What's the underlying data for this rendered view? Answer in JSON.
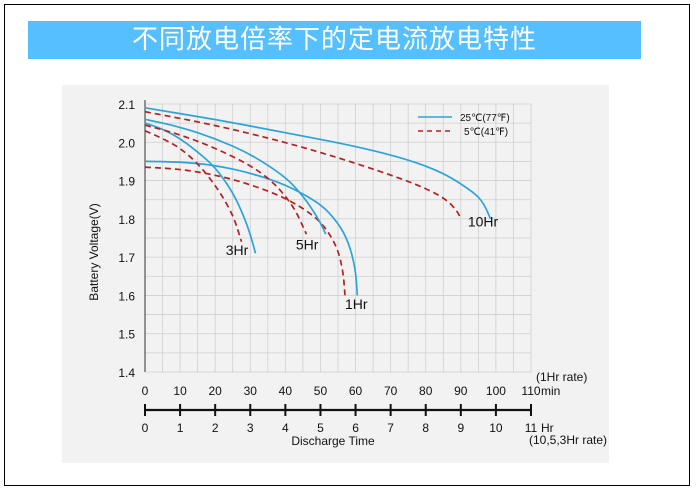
{
  "header": {
    "title": "不同放电倍率下的定电流放电特性"
  },
  "chart_data": {
    "type": "line",
    "title": "",
    "ylabel": "Battery  Voltage(V)",
    "xlabel": "Discharge  Time",
    "ylim": [
      1.4,
      2.1
    ],
    "yticks": [
      "1.4",
      "1.5",
      "1.6",
      "1.7",
      "1.8",
      "1.9",
      "2.0",
      "2.1"
    ],
    "x_min_axis": {
      "range": [
        0,
        110
      ],
      "ticks": [
        "0",
        "10",
        "20",
        "30",
        "40",
        "50",
        "60",
        "70",
        "80",
        "90",
        "100",
        "110"
      ],
      "unit_label": "min",
      "rate_label": "(1Hr rate)"
    },
    "x_hr_axis": {
      "range": [
        0,
        11
      ],
      "ticks": [
        "0",
        "1",
        "2",
        "3",
        "4",
        "5",
        "6",
        "7",
        "8",
        "9",
        "10",
        "11"
      ],
      "unit_label": "Hr",
      "rate_label": "(10,5,3Hr rate)"
    },
    "grid": true,
    "legend": {
      "position": "top-right",
      "entries": [
        {
          "name": "25℃(77℉)",
          "color": "#2ea3d8",
          "dash": "solid"
        },
        {
          "name": "5℃(41℉)",
          "color": "#b22222",
          "dash": "dashed"
        }
      ]
    },
    "curve_labels": [
      {
        "text": "3Hr",
        "x_min": 23,
        "y": 1.705
      },
      {
        "text": "5Hr",
        "x_min": 43,
        "y": 1.72
      },
      {
        "text": "1Hr",
        "x_min": 57,
        "y": 1.565
      },
      {
        "text": "10Hr",
        "x_min": 92,
        "y": 1.78
      }
    ],
    "series": [
      {
        "name": "1Hr 25℃(77℉)",
        "style": "solid",
        "points": [
          [
            0,
            1.95
          ],
          [
            10,
            1.949
          ],
          [
            20,
            1.94
          ],
          [
            30,
            1.92
          ],
          [
            40,
            1.89
          ],
          [
            50,
            1.84
          ],
          [
            55,
            1.79
          ],
          [
            58,
            1.74
          ],
          [
            60,
            1.67
          ],
          [
            60.5,
            1.6
          ]
        ]
      },
      {
        "name": "1Hr 5℃(41℉)",
        "style": "dashed",
        "points": [
          [
            0,
            1.935
          ],
          [
            10,
            1.93
          ],
          [
            20,
            1.915
          ],
          [
            30,
            1.89
          ],
          [
            40,
            1.855
          ],
          [
            48,
            1.81
          ],
          [
            52,
            1.77
          ],
          [
            55,
            1.72
          ],
          [
            56.5,
            1.66
          ],
          [
            57,
            1.6
          ]
        ]
      },
      {
        "name": "3Hr 25℃(77℉)",
        "style": "solid",
        "points": [
          [
            0,
            2.05
          ],
          [
            5,
            2.035
          ],
          [
            10,
            2.01
          ],
          [
            15,
            1.975
          ],
          [
            20,
            1.935
          ],
          [
            25,
            1.87
          ],
          [
            28,
            1.81
          ],
          [
            30,
            1.76
          ],
          [
            31.5,
            1.71
          ]
        ]
      },
      {
        "name": "3Hr 5℃(41℉)",
        "style": "dashed",
        "points": [
          [
            0,
            2.03
          ],
          [
            5,
            2.01
          ],
          [
            10,
            1.985
          ],
          [
            15,
            1.945
          ],
          [
            19,
            1.9
          ],
          [
            22,
            1.86
          ],
          [
            25,
            1.81
          ],
          [
            26.5,
            1.77
          ],
          [
            27.5,
            1.74
          ]
        ]
      },
      {
        "name": "5Hr 25℃(77℉)",
        "style": "solid",
        "points": [
          [
            0,
            2.06
          ],
          [
            10,
            2.04
          ],
          [
            20,
            2.01
          ],
          [
            30,
            1.97
          ],
          [
            40,
            1.91
          ],
          [
            45,
            1.86
          ],
          [
            48,
            1.82
          ],
          [
            50,
            1.79
          ],
          [
            51.5,
            1.76
          ]
        ]
      },
      {
        "name": "5Hr 5℃(41℉)",
        "style": "dashed",
        "points": [
          [
            0,
            2.045
          ],
          [
            10,
            2.02
          ],
          [
            20,
            1.985
          ],
          [
            30,
            1.94
          ],
          [
            36,
            1.9
          ],
          [
            40,
            1.86
          ],
          [
            43,
            1.82
          ],
          [
            45,
            1.78
          ],
          [
            46,
            1.76
          ]
        ]
      },
      {
        "name": "10Hr 25℃(77℉)",
        "style": "solid",
        "points": [
          [
            0,
            2.09
          ],
          [
            20,
            2.06
          ],
          [
            40,
            2.025
          ],
          [
            60,
            1.99
          ],
          [
            75,
            1.955
          ],
          [
            85,
            1.92
          ],
          [
            92,
            1.88
          ],
          [
            96,
            1.85
          ],
          [
            98.5,
            1.8
          ]
        ]
      },
      {
        "name": "10Hr 5℃(41℉)",
        "style": "dashed",
        "points": [
          [
            0,
            2.08
          ],
          [
            20,
            2.045
          ],
          [
            40,
            2.0
          ],
          [
            55,
            1.96
          ],
          [
            70,
            1.915
          ],
          [
            80,
            1.88
          ],
          [
            86,
            1.85
          ],
          [
            89,
            1.82
          ],
          [
            90,
            1.8
          ]
        ]
      }
    ]
  }
}
